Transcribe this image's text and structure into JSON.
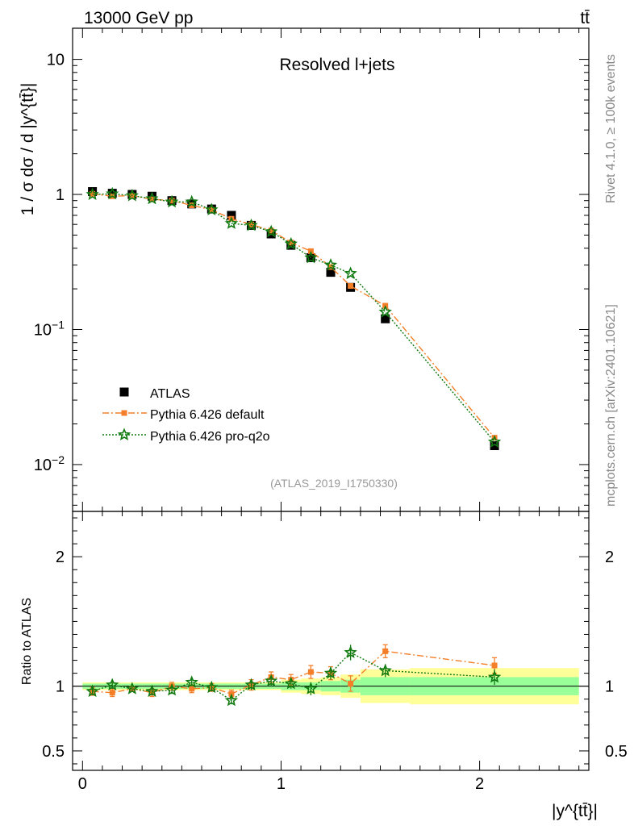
{
  "header": {
    "left": "13000 GeV pp",
    "right": "tt̄"
  },
  "side": {
    "rivet": "Rivet 4.1.0, ≥ 100k events",
    "mcplots": "mcplots.cern.ch [arXiv:2401.10621]"
  },
  "chart_data": {
    "type": "scatter",
    "title": "Resolved l+jets",
    "analysis": "(ATLAS_2019_I1750330)",
    "ylabel": "1 / σ dσ / d |y^{tt̄}|",
    "ratio_ylabel": "Ratio to ATLAS",
    "xlabel": "|y^{tt̄}|",
    "xlim": [
      -0.05,
      2.55
    ],
    "ylim": [
      0.0045,
      17
    ],
    "ratio_ylim": [
      0.35,
      2.35
    ],
    "xticks": [
      0,
      1,
      2
    ],
    "yticks": [
      {
        "value": 0.01,
        "label": "10",
        "exp": "−2"
      },
      {
        "value": 0.1,
        "label": "10",
        "exp": "−1"
      },
      {
        "value": 1,
        "label": "1",
        "exp": ""
      },
      {
        "value": 10,
        "label": "10",
        "exp": ""
      }
    ],
    "ratio_yticks": [
      0.5,
      1,
      2
    ],
    "bins": [
      0,
      0.1,
      0.2,
      0.3,
      0.4,
      0.5,
      0.6,
      0.7,
      0.8,
      0.9,
      1.0,
      1.1,
      1.2,
      1.3,
      1.4,
      1.65,
      2.5
    ],
    "x": [
      0.05,
      0.15,
      0.25,
      0.35,
      0.45,
      0.55,
      0.65,
      0.75,
      0.85,
      0.95,
      1.05,
      1.15,
      1.25,
      1.35,
      1.525,
      2.075
    ],
    "series": [
      {
        "name": "ATLAS",
        "color": "#000000",
        "values": [
          1.05,
          1.02,
          1.0,
          0.97,
          0.9,
          0.85,
          0.78,
          0.7,
          0.59,
          0.51,
          0.42,
          0.34,
          0.265,
          0.205,
          0.12,
          0.0138
        ]
      },
      {
        "name": "Pythia 6.426 default",
        "color": "#f47f28",
        "values": [
          1.01,
          0.97,
          0.98,
          0.92,
          0.9,
          0.83,
          0.77,
          0.66,
          0.6,
          0.54,
          0.44,
          0.38,
          0.29,
          0.21,
          0.15,
          0.0158
        ],
        "ratio": [
          0.96,
          0.95,
          0.98,
          0.95,
          1.0,
          0.98,
          0.99,
          0.94,
          1.01,
          1.07,
          1.05,
          1.11,
          1.1,
          1.02,
          1.27,
          1.16
        ],
        "ratio_err": [
          0.03,
          0.03,
          0.02,
          0.03,
          0.03,
          0.03,
          0.03,
          0.03,
          0.04,
          0.04,
          0.04,
          0.05,
          0.05,
          0.06,
          0.05,
          0.06
        ]
      },
      {
        "name": "Pythia 6.426 pro-q2o",
        "color": "#117a11",
        "values": [
          1.0,
          1.01,
          0.98,
          0.93,
          0.88,
          0.88,
          0.77,
          0.61,
          0.59,
          0.53,
          0.43,
          0.34,
          0.3,
          0.26,
          0.135,
          0.0147
        ],
        "ratio": [
          0.96,
          1.01,
          0.98,
          0.96,
          0.97,
          1.03,
          0.99,
          0.89,
          1.01,
          1.04,
          1.02,
          0.98,
          1.1,
          1.26,
          1.12,
          1.07
        ],
        "ratio_err": [
          0.03,
          0.03,
          0.02,
          0.03,
          0.03,
          0.03,
          0.03,
          0.03,
          0.04,
          0.04,
          0.04,
          0.05,
          0.05,
          0.06,
          0.05,
          0.06
        ]
      }
    ],
    "band_inner": [
      0.02,
      0.02,
      0.02,
      0.02,
      0.02,
      0.02,
      0.02,
      0.02,
      0.02,
      0.02,
      0.03,
      0.03,
      0.04,
      0.05,
      0.07,
      0.07
    ],
    "band_outer": [
      0.03,
      0.03,
      0.03,
      0.03,
      0.03,
      0.03,
      0.03,
      0.03,
      0.03,
      0.03,
      0.05,
      0.06,
      0.07,
      0.09,
      0.13,
      0.14
    ]
  }
}
